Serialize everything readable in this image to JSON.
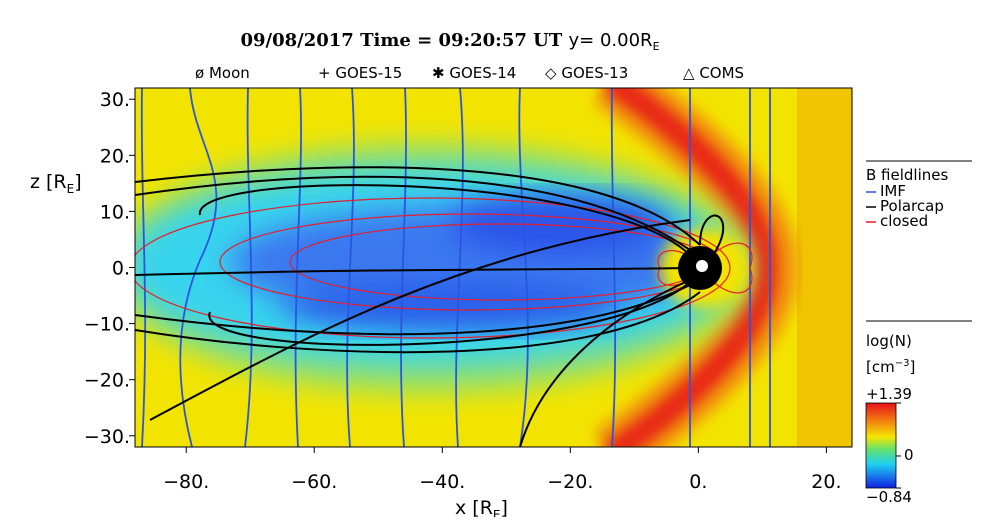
{
  "chart_data": {
    "type": "contour",
    "title": "09/08/2017 Time = 09:20:57 UT",
    "title_position": "y= 0.00R",
    "title_position_subscript": "E",
    "satellites": [
      {
        "symbol": "ø",
        "name": "Moon"
      },
      {
        "symbol": "+",
        "name": "GOES-15"
      },
      {
        "symbol": "✱",
        "name": "GOES-14"
      },
      {
        "symbol": "◇",
        "name": "GOES-13"
      },
      {
        "symbol": "△",
        "name": "COMS"
      }
    ],
    "xlabel": {
      "text": "x [R",
      "subscript": "E",
      "close": "]"
    },
    "ylabel": {
      "text": "z [R",
      "subscript": "E",
      "close": "]"
    },
    "xlim": [
      -88,
      24
    ],
    "ylim": [
      -32,
      32
    ],
    "xticks": [
      {
        "value": -80,
        "label": "−80."
      },
      {
        "value": -60,
        "label": "−60."
      },
      {
        "value": -40,
        "label": "−40."
      },
      {
        "value": -20,
        "label": "−20."
      },
      {
        "value": 0,
        "label": "0."
      },
      {
        "value": 20,
        "label": "20."
      }
    ],
    "yticks": [
      {
        "value": 30,
        "label": "30."
      },
      {
        "value": 20,
        "label": "20."
      },
      {
        "value": 10,
        "label": "10."
      },
      {
        "value": 0,
        "label": "0."
      },
      {
        "value": -10,
        "label": "−10."
      },
      {
        "value": -20,
        "label": "−20."
      },
      {
        "value": -30,
        "label": "−30."
      }
    ],
    "fieldlines": {
      "title": "B fieldlines",
      "series": [
        {
          "name": "IMF",
          "color": "#2a55e0"
        },
        {
          "name": "Polarcap",
          "color": "#000000"
        },
        {
          "name": "closed",
          "color": "#e02030"
        }
      ]
    },
    "colorbar": {
      "title": "log(N)",
      "unit": "[cm",
      "unit_superscript": "−3",
      "unit_close": "]",
      "clim": [
        -0.84,
        1.39
      ],
      "ticks": [
        {
          "value": 1.39,
          "label": "+1.39"
        },
        0,
        {
          "value": -0.84,
          "label": "−0.84"
        }
      ]
    }
  }
}
